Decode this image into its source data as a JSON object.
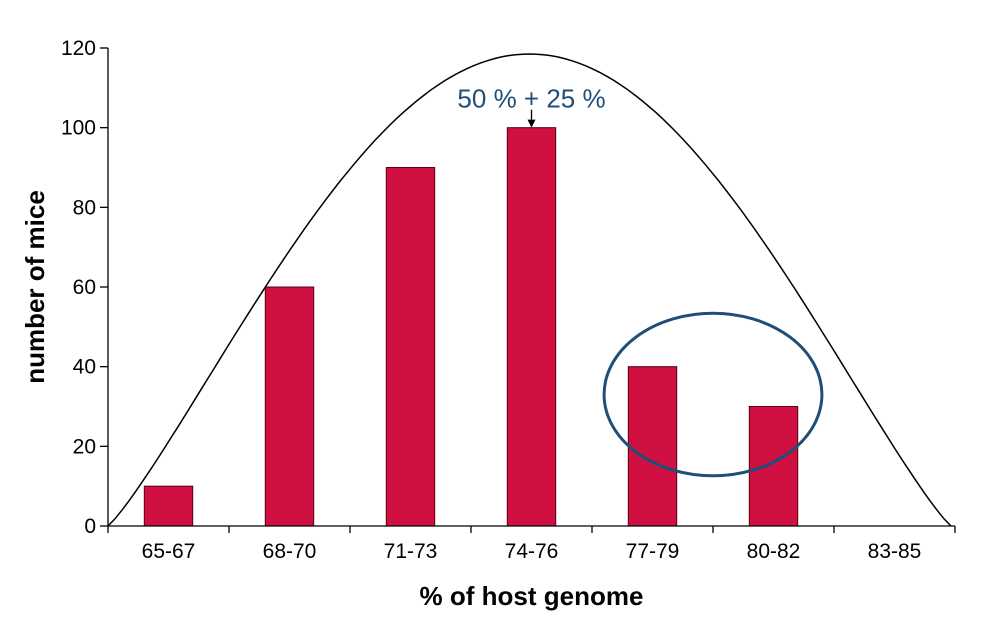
{
  "chart_data": {
    "type": "bar",
    "title": "",
    "xlabel": "% of host genome",
    "ylabel": "number of mice",
    "categories": [
      "65-67",
      "68-70",
      "71-73",
      "74-76",
      "77-79",
      "80-82",
      "83-85"
    ],
    "values": [
      10,
      60,
      90,
      100,
      40,
      30,
      0
    ],
    "ylim": [
      0,
      120
    ],
    "yticks": [
      0,
      20,
      40,
      60,
      80,
      100,
      120
    ],
    "grid": false,
    "colors": {
      "bar": "#d01040",
      "bar_edge": "#5a0010",
      "curve": "#000000",
      "ellipse": "#1f4e79",
      "annotation": "#1f4e79"
    },
    "overlays": {
      "curve": {
        "type": "bell-curve",
        "peak_y": 118.5
      },
      "ellipse": {
        "highlights": [
          "77-79",
          "80-82"
        ]
      }
    },
    "annotation": {
      "text": "50 % + 25 %",
      "points_to": "74-76"
    }
  }
}
